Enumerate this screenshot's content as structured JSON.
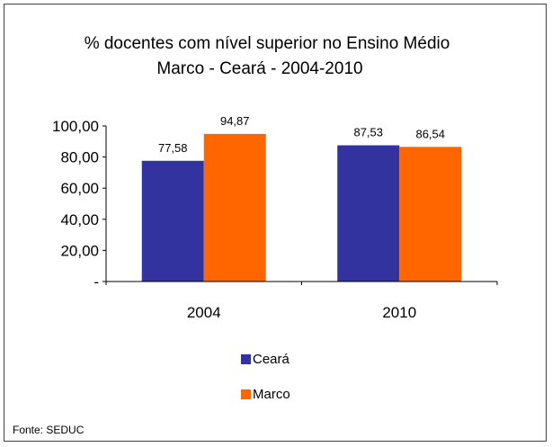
{
  "chart_data": {
    "type": "bar",
    "title_line1": "% docentes com nível  superior no Ensino Médio",
    "title_line2": "Marco  -  Ceará - 2004-2010",
    "categories": [
      "2004",
      "2010"
    ],
    "series": [
      {
        "name": "Ceará",
        "color": "#3333a0",
        "values": [
          77.58,
          87.53
        ],
        "labels": [
          "77,58",
          "87,53"
        ]
      },
      {
        "name": "Marco",
        "color": "#ff6600",
        "values": [
          94.87,
          86.54
        ],
        "labels": [
          "94,87",
          "86,54"
        ]
      }
    ],
    "yticks": [
      {
        "value": 0,
        "label": "-"
      },
      {
        "value": 20,
        "label": "20,00"
      },
      {
        "value": 40,
        "label": "40,00"
      },
      {
        "value": 60,
        "label": "60,00"
      },
      {
        "value": 80,
        "label": "80,00"
      },
      {
        "value": 100,
        "label": "100,00"
      }
    ],
    "ylim": [
      0,
      100
    ],
    "legend_position": "bottom-center",
    "source": "Fonte: SEDUC"
  }
}
